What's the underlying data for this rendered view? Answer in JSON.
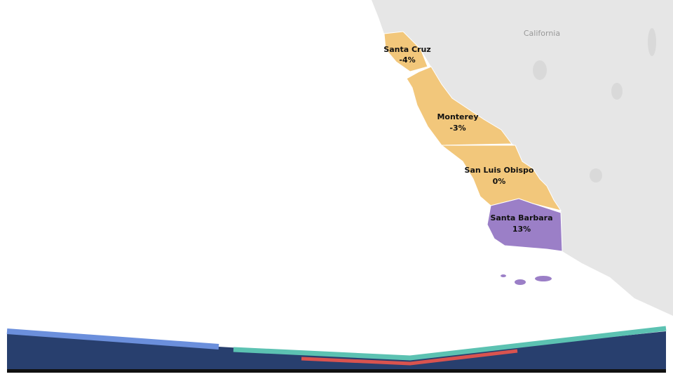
{
  "map": {
    "region_label": "California",
    "counties": [
      {
        "name": "Santa Cruz",
        "change": "-4%",
        "color": "#f2c77b"
      },
      {
        "name": "Monterey",
        "change": "-3%",
        "color": "#f2c77b"
      },
      {
        "name": "San Luis Obispo",
        "change": "0%",
        "color": "#f2c77b"
      },
      {
        "name": "Santa Barbara",
        "change": "13%",
        "color": "#9b7fc7"
      }
    ]
  }
}
